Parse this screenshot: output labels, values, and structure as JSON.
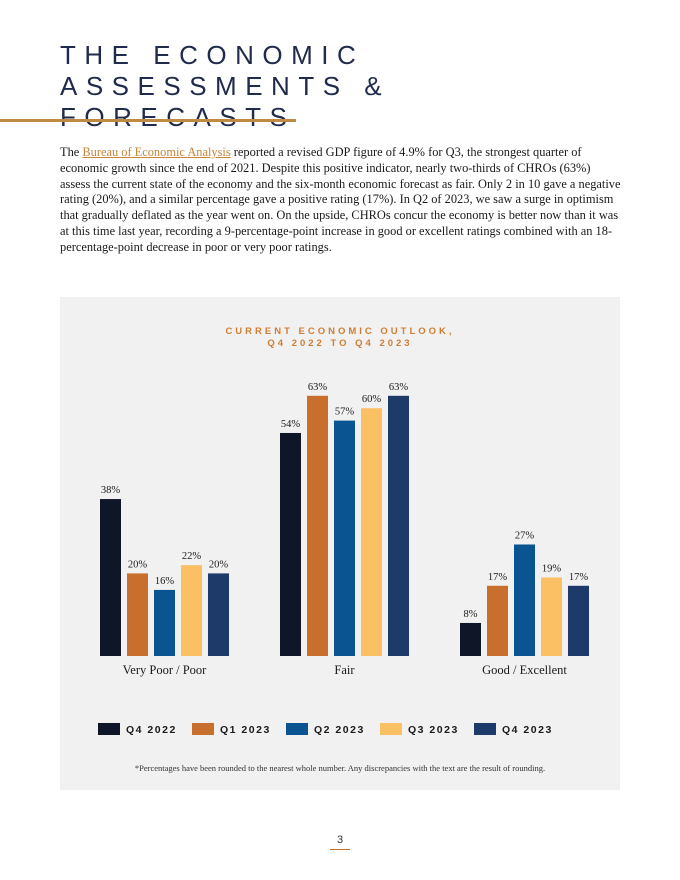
{
  "header": {
    "title": "THE ECONOMIC ASSESSMENTS & FORECASTS"
  },
  "body": {
    "intro": "The",
    "link": "Bureau of Economic Analysis",
    "text": "reported a revised GDP figure of 4.9% for Q3, the strongest quarter of economic growth since the end of 2021. Despite this positive indicator, nearly two-thirds of CHROs (63%) assess the current state of the economy and the six-month economic forecast as fair. Only 2 in 10 gave a negative rating (20%), and a similar percentage gave a positive rating (17%). In Q2 of 2023, we saw a surge in optimism that gradually deflated as the year went on. On the upside, CHROs concur the economy is better now than it was at this time last year, recording a 9-percentage-point increase in good or excellent ratings combined with an 18-percentage-point decrease in poor or very poor ratings."
  },
  "chart_data": {
    "type": "bar",
    "title": "CURRENT ECONOMIC OUTLOOK, Q4 2022 TO Q4 2023",
    "categories": [
      "Very Poor / Poor",
      "Fair",
      "Good / Excellent"
    ],
    "series": [
      {
        "name": "Q4 2022",
        "color": "#0f1628",
        "values": [
          38,
          54,
          8
        ],
        "value_labels": [
          "38%",
          "54%",
          "8%"
        ]
      },
      {
        "name": "Q1 2023",
        "color": "#c96f2e",
        "values": [
          20,
          63,
          17
        ],
        "value_labels": [
          "20%",
          "63%",
          "17%"
        ]
      },
      {
        "name": "Q2 2023",
        "color": "#0a5591",
        "values": [
          16,
          57,
          27
        ],
        "value_labels": [
          "16%",
          "57%",
          "27%"
        ]
      },
      {
        "name": "Q3 2023",
        "color": "#fcc064",
        "values": [
          22,
          60,
          19
        ],
        "value_labels": [
          "22%",
          "60%",
          "19%"
        ]
      },
      {
        "name": "Q4 2023",
        "color": "#1e3a68",
        "values": [
          20,
          63,
          17
        ],
        "value_labels": [
          "20%",
          "63%",
          "17%"
        ]
      }
    ],
    "footnote": "*Percentages have been rounded to the nearest whole number. Any discrepancies with the text are the result of rounding."
  },
  "footer": {
    "page_number": "3"
  }
}
